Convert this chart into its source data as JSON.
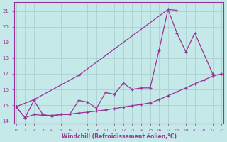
{
  "xlabel": "Windchill (Refroidissement éolien,°C)",
  "bg_color": "#c5e8e8",
  "grid_color": "#a8cccc",
  "line_color": "#993399",
  "xlim": [
    -0.2,
    23.2
  ],
  "ylim": [
    13.85,
    21.55
  ],
  "yticks": [
    14,
    15,
    16,
    17,
    18,
    19,
    20,
    21
  ],
  "xticks": [
    0,
    1,
    2,
    3,
    4,
    5,
    6,
    7,
    8,
    9,
    10,
    11,
    12,
    13,
    14,
    15,
    16,
    17,
    18,
    19,
    20,
    21,
    22,
    23
  ],
  "line_upper_x": [
    0,
    2,
    7,
    17,
    18
  ],
  "line_upper_y": [
    14.9,
    15.35,
    16.9,
    21.1,
    21.05
  ],
  "line_mid_x": [
    0,
    1,
    2,
    3,
    4,
    5,
    6,
    7,
    8,
    9,
    10,
    11,
    12,
    13,
    14,
    15,
    16,
    17,
    18,
    19,
    20,
    22
  ],
  "line_mid_y": [
    14.9,
    14.2,
    15.3,
    14.4,
    14.3,
    14.4,
    14.4,
    15.3,
    15.2,
    14.8,
    15.8,
    15.7,
    16.4,
    16.0,
    16.1,
    16.1,
    18.5,
    21.1,
    19.6,
    18.4,
    19.6,
    17.0
  ],
  "line_low_x": [
    0,
    1,
    2,
    3,
    4,
    5,
    6,
    7,
    8,
    9,
    10,
    11,
    12,
    13,
    14,
    15,
    16,
    17,
    18,
    19,
    20,
    21,
    22,
    23
  ],
  "line_low_y": [
    14.9,
    14.2,
    14.4,
    14.35,
    14.35,
    14.4,
    14.42,
    14.5,
    14.55,
    14.62,
    14.7,
    14.78,
    14.88,
    14.97,
    15.05,
    15.15,
    15.35,
    15.6,
    15.85,
    16.1,
    16.35,
    16.6,
    16.85,
    17.0
  ]
}
